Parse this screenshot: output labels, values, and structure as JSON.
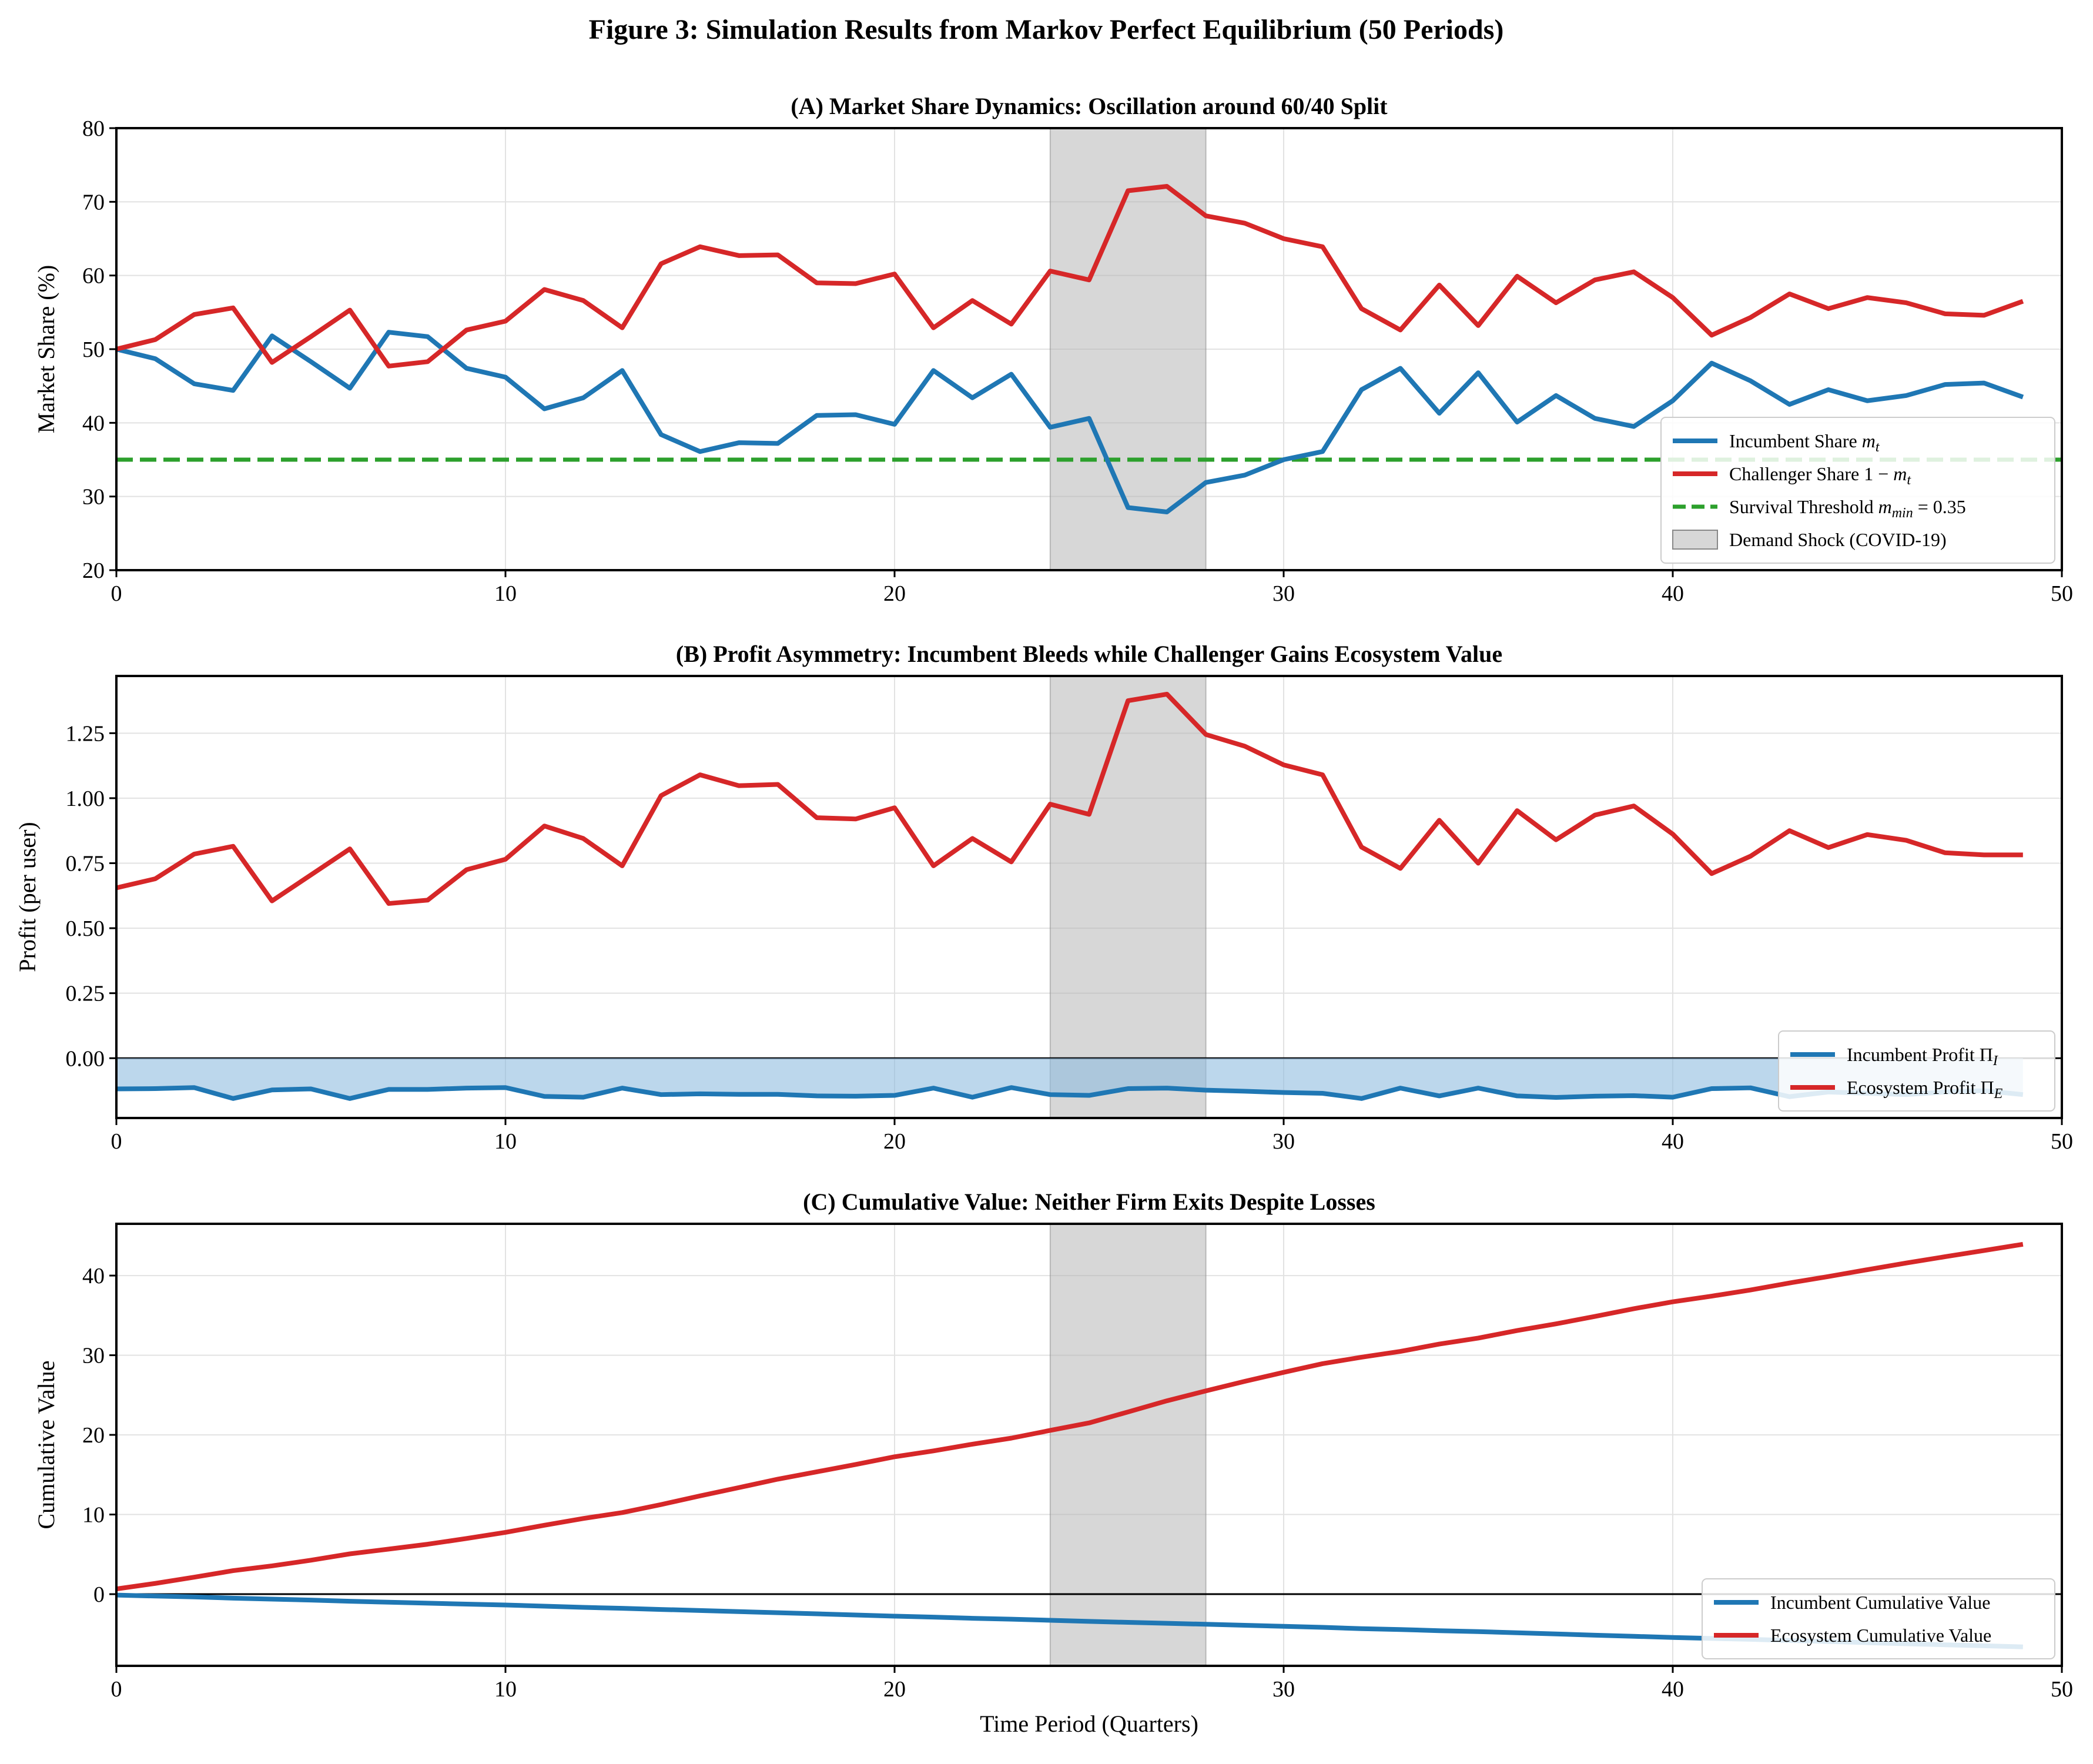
{
  "figure_title": "Figure 3: Simulation Results from Markov Perfect Equilibrium (50 Periods)",
  "colors": {
    "incumbent": "#1f77b4",
    "challenger": "#d62728",
    "threshold": "#2ca02c",
    "shock": "#b0b0b0",
    "incumbent_fill": "#8fbce0",
    "grid": "#e2e2e2"
  },
  "chart_data": [
    {
      "type": "line",
      "title": "(A) Market Share Dynamics: Oscillation around 60/40 Split",
      "xlabel": "",
      "ylabel": "Market Share (%)",
      "xlim": [
        0,
        50
      ],
      "ylim": [
        20,
        80
      ],
      "xticks": [
        "0",
        "10",
        "20",
        "30",
        "40",
        "50"
      ],
      "yticks": [
        "20",
        "30",
        "40",
        "50",
        "60",
        "70",
        "80"
      ],
      "grid": true,
      "shock_band": [
        24,
        28
      ],
      "hline": {
        "y": 35,
        "label": "Survival Threshold m_min = 0.35"
      },
      "legend_position": "lower-right",
      "x": [
        0,
        1,
        2,
        3,
        4,
        5,
        6,
        7,
        8,
        9,
        10,
        11,
        12,
        13,
        14,
        15,
        16,
        17,
        18,
        19,
        20,
        21,
        22,
        23,
        24,
        25,
        26,
        27,
        28,
        29,
        30,
        31,
        32,
        33,
        34,
        35,
        36,
        37,
        38,
        39,
        40,
        41,
        42,
        43,
        44,
        45,
        46,
        47,
        48,
        49
      ],
      "series": [
        {
          "name": "Incumbent Share m_t",
          "values": [
            50,
            48.7,
            45.3,
            44.4,
            51.8,
            48.3,
            44.7,
            52.3,
            51.7,
            47.4,
            46.2,
            41.9,
            43.4,
            47.1,
            38.4,
            36.1,
            37.3,
            37.2,
            41.0,
            41.1,
            39.8,
            47.1,
            43.4,
            46.6,
            39.4,
            40.6,
            28.5,
            27.9,
            31.9,
            32.9,
            35.0,
            36.1,
            44.5,
            47.4,
            41.3,
            46.8,
            40.1,
            43.7,
            40.6,
            39.5,
            43.0,
            48.1,
            45.7,
            42.5,
            44.5,
            43.0,
            43.7,
            45.2,
            45.4,
            43.5
          ]
        },
        {
          "name": "Challenger Share 1 − m_t",
          "values": [
            50,
            51.3,
            54.7,
            55.6,
            48.2,
            51.7,
            55.3,
            47.7,
            48.3,
            52.6,
            53.8,
            58.1,
            56.6,
            52.9,
            61.6,
            63.9,
            62.7,
            62.8,
            59.0,
            58.9,
            60.2,
            52.9,
            56.6,
            53.4,
            60.6,
            59.4,
            71.5,
            72.1,
            68.1,
            67.1,
            65.0,
            63.9,
            55.5,
            52.6,
            58.7,
            53.2,
            59.9,
            56.3,
            59.4,
            60.5,
            57.0,
            51.9,
            54.3,
            57.5,
            55.5,
            57.0,
            56.3,
            54.8,
            54.6,
            56.5
          ]
        }
      ],
      "legend": [
        "Incumbent Share m_t",
        "Challenger Share 1 − m_t",
        "Survival Threshold m_min = 0.35",
        "Demand Shock (COVID-19)"
      ]
    },
    {
      "type": "line",
      "title": "(B) Profit Asymmetry: Incumbent Bleeds while Challenger Gains Ecosystem Value",
      "xlabel": "",
      "ylabel": "Profit (per user)",
      "xlim": [
        0,
        50
      ],
      "ylim": [
        -0.23,
        1.47
      ],
      "xticks": [
        "0",
        "10",
        "20",
        "30",
        "40",
        "50"
      ],
      "ytick_values": [
        0,
        0.25,
        0.5,
        0.75,
        1.0,
        1.25
      ],
      "yticks": [
        "0.00",
        "0.25",
        "0.50",
        "0.75",
        "1.00",
        "1.25"
      ],
      "grid": true,
      "shock_band": [
        24,
        28
      ],
      "hline": {
        "y": 0
      },
      "legend_position": "lower-right",
      "x": [
        0,
        1,
        2,
        3,
        4,
        5,
        6,
        7,
        8,
        9,
        10,
        11,
        12,
        13,
        14,
        15,
        16,
        17,
        18,
        19,
        20,
        21,
        22,
        23,
        24,
        25,
        26,
        27,
        28,
        29,
        30,
        31,
        32,
        33,
        34,
        35,
        36,
        37,
        38,
        39,
        40,
        41,
        42,
        43,
        44,
        45,
        46,
        47,
        48,
        49
      ],
      "series": [
        {
          "name": "Incumbent Profit Π_I",
          "values": [
            -0.118,
            -0.117,
            -0.113,
            -0.155,
            -0.122,
            -0.118,
            -0.155,
            -0.12,
            -0.12,
            -0.115,
            -0.113,
            -0.147,
            -0.15,
            -0.115,
            -0.14,
            -0.137,
            -0.139,
            -0.139,
            -0.145,
            -0.146,
            -0.143,
            -0.115,
            -0.15,
            -0.113,
            -0.14,
            -0.143,
            -0.117,
            -0.115,
            -0.123,
            -0.127,
            -0.132,
            -0.135,
            -0.155,
            -0.115,
            -0.145,
            -0.115,
            -0.145,
            -0.151,
            -0.146,
            -0.144,
            -0.15,
            -0.117,
            -0.114,
            -0.148,
            -0.13,
            -0.135,
            -0.14,
            -0.13,
            -0.125,
            -0.14
          ]
        },
        {
          "name": "Ecosystem Profit Π_E",
          "values": [
            0.655,
            0.69,
            0.785,
            0.815,
            0.605,
            0.705,
            0.805,
            0.595,
            0.608,
            0.725,
            0.765,
            0.893,
            0.845,
            0.74,
            1.01,
            1.09,
            1.048,
            1.053,
            0.925,
            0.92,
            0.963,
            0.74,
            0.845,
            0.755,
            0.977,
            0.938,
            1.375,
            1.4,
            1.245,
            1.2,
            1.128,
            1.09,
            0.812,
            0.73,
            0.915,
            0.75,
            0.952,
            0.84,
            0.935,
            0.97,
            0.862,
            0.71,
            0.777,
            0.875,
            0.81,
            0.86,
            0.838,
            0.79,
            0.782,
            0.782
          ]
        }
      ],
      "legend": [
        "Incumbent Profit Π_I",
        "Ecosystem Profit Π_E"
      ]
    },
    {
      "type": "line",
      "title": "(C) Cumulative Value: Neither Firm Exits Despite Losses",
      "xlabel": "Time Period (Quarters)",
      "ylabel": "Cumulative Value",
      "xlim": [
        0,
        50
      ],
      "ylim": [
        -9,
        46.5
      ],
      "xticks": [
        "0",
        "10",
        "20",
        "30",
        "40",
        "50"
      ],
      "ytick_values": [
        0,
        10,
        20,
        30,
        40
      ],
      "yticks": [
        "0",
        "10",
        "20",
        "30",
        "40"
      ],
      "grid": true,
      "shock_band": [
        24,
        28
      ],
      "hline": {
        "y": 0
      },
      "legend_position": "lower-right",
      "x": [
        0,
        1,
        2,
        3,
        4,
        5,
        6,
        7,
        8,
        9,
        10,
        11,
        12,
        13,
        14,
        15,
        16,
        17,
        18,
        19,
        20,
        21,
        22,
        23,
        24,
        25,
        26,
        27,
        28,
        29,
        30,
        31,
        32,
        33,
        34,
        35,
        36,
        37,
        38,
        39,
        40,
        41,
        42,
        43,
        44,
        45,
        46,
        47,
        48,
        49
      ],
      "series": [
        {
          "name": "Incumbent Cumulative Value",
          "values": [
            -0.12,
            -0.24,
            -0.35,
            -0.5,
            -0.62,
            -0.74,
            -0.89,
            -1.01,
            -1.13,
            -1.25,
            -1.36,
            -1.51,
            -1.66,
            -1.78,
            -1.92,
            -2.05,
            -2.19,
            -2.33,
            -2.47,
            -2.62,
            -2.76,
            -2.88,
            -3.03,
            -3.14,
            -3.28,
            -3.42,
            -3.54,
            -3.66,
            -3.78,
            -3.91,
            -4.04,
            -4.17,
            -4.33,
            -4.44,
            -4.59,
            -4.7,
            -4.85,
            -5.0,
            -5.15,
            -5.29,
            -5.44,
            -5.56,
            -5.67,
            -5.82,
            -5.95,
            -6.09,
            -6.23,
            -6.36,
            -6.48,
            -6.62
          ]
        },
        {
          "name": "Ecosystem Cumulative Value",
          "values": [
            0.66,
            1.35,
            2.13,
            2.95,
            3.55,
            4.26,
            5.06,
            5.66,
            6.27,
            6.99,
            7.76,
            8.65,
            9.5,
            10.24,
            11.25,
            12.34,
            13.38,
            14.44,
            15.36,
            16.28,
            17.25,
            17.99,
            18.83,
            19.59,
            20.56,
            21.5,
            22.88,
            24.28,
            25.52,
            26.72,
            27.85,
            28.94,
            29.75,
            30.48,
            31.4,
            32.15,
            33.1,
            33.94,
            34.87,
            35.84,
            36.71,
            37.42,
            38.19,
            39.07,
            39.88,
            40.74,
            41.58,
            42.37,
            43.15,
            43.93
          ]
        }
      ],
      "legend": [
        "Incumbent Cumulative Value",
        "Ecosystem Cumulative Value"
      ]
    }
  ]
}
